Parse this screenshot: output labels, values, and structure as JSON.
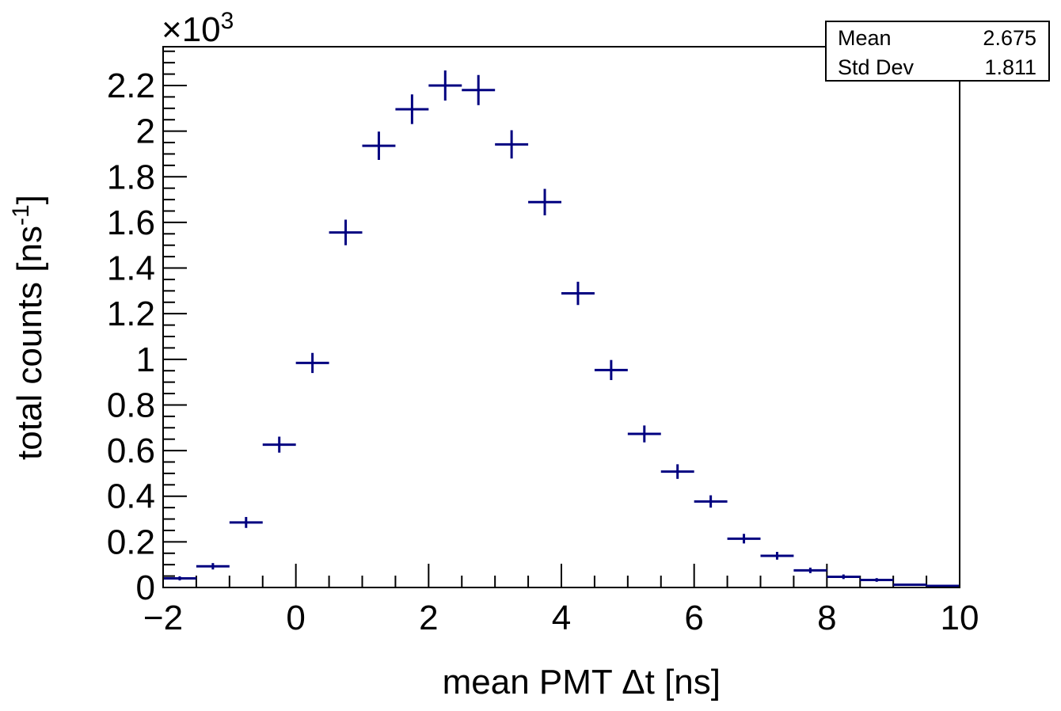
{
  "chart_data": {
    "type": "histogram",
    "xlabel": "mean PMT Δt [ns]",
    "ylabel_main": "total counts [ns",
    "ylabel_sup": "-1",
    "ylabel_end": "]",
    "y_multiplier": "×10",
    "y_multiplier_exp": "3",
    "xlim": [
      -2,
      10
    ],
    "ylim": [
      0,
      2.37
    ],
    "x_ticks": [
      {
        "value": -2,
        "label": "−2"
      },
      {
        "value": 0,
        "label": "0"
      },
      {
        "value": 2,
        "label": "2"
      },
      {
        "value": 4,
        "label": "4"
      },
      {
        "value": 6,
        "label": "6"
      },
      {
        "value": 8,
        "label": "8"
      },
      {
        "value": 10,
        "label": "10"
      }
    ],
    "y_ticks": [
      {
        "value": 0,
        "label": "0"
      },
      {
        "value": 0.2,
        "label": "0.2"
      },
      {
        "value": 0.4,
        "label": "0.4"
      },
      {
        "value": 0.6,
        "label": "0.6"
      },
      {
        "value": 0.8,
        "label": "0.8"
      },
      {
        "value": 1.0,
        "label": "1"
      },
      {
        "value": 1.2,
        "label": "1.2"
      },
      {
        "value": 1.4,
        "label": "1.4"
      },
      {
        "value": 1.6,
        "label": "1.6"
      },
      {
        "value": 1.8,
        "label": "1.8"
      },
      {
        "value": 2.0,
        "label": "2"
      },
      {
        "value": 2.2,
        "label": "2.2"
      }
    ],
    "bin_width": 0.5,
    "bin_centers": [
      -1.75,
      -1.25,
      -0.75,
      -0.25,
      0.25,
      0.75,
      1.25,
      1.75,
      2.25,
      2.75,
      3.25,
      3.75,
      4.25,
      4.75,
      5.25,
      5.75,
      6.25,
      6.75,
      7.25,
      7.75,
      8.25,
      8.75,
      9.25,
      9.75
    ],
    "values": [
      0.04,
      0.093,
      0.285,
      0.626,
      0.984,
      1.556,
      1.936,
      2.096,
      2.2,
      2.18,
      1.942,
      1.689,
      1.289,
      0.953,
      0.673,
      0.508,
      0.377,
      0.214,
      0.139,
      0.075,
      0.047,
      0.033,
      0.012,
      0.007
    ],
    "errors": [
      0.009,
      0.014,
      0.024,
      0.035,
      0.044,
      0.056,
      0.062,
      0.065,
      0.066,
      0.066,
      0.062,
      0.058,
      0.051,
      0.044,
      0.037,
      0.032,
      0.027,
      0.021,
      0.017,
      0.012,
      0.01,
      0.008,
      0.005,
      0.004
    ],
    "marker_color": "#000080",
    "stats": {
      "mean_label": "Mean",
      "mean_value": "2.675",
      "std_label": "Std Dev",
      "std_value": "1.811"
    }
  }
}
